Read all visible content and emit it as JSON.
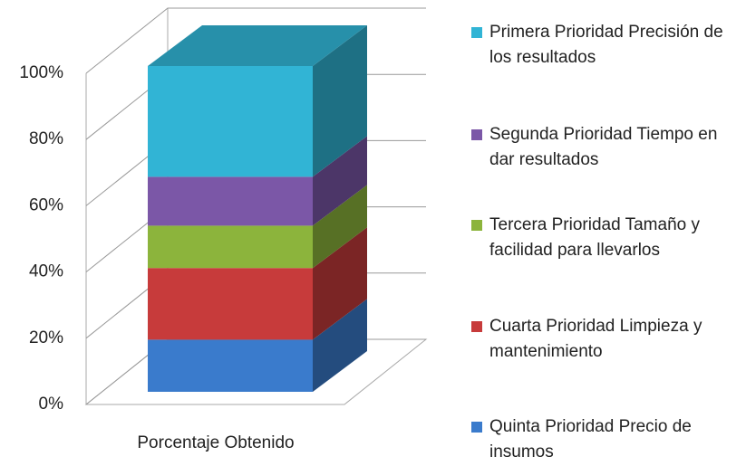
{
  "chart_data": {
    "type": "bar",
    "stacked": true,
    "three_d": true,
    "categories": [
      "Porcentaje Obtenido"
    ],
    "series": [
      {
        "name": "Quinta Prioridad Precio de insumos",
        "color": "#3a7bcc",
        "values": [
          16
        ]
      },
      {
        "name": "Cuarta Prioridad Limpieza y mantenimiento",
        "color": "#c73b3b",
        "values": [
          22
        ]
      },
      {
        "name": "Tercera Prioridad Tamaño y facilidad para llevarlos",
        "color": "#8cb43c",
        "values": [
          13
        ]
      },
      {
        "name": "Segunda Prioridad Tiempo en dar resultados",
        "color": "#7b57a7",
        "values": [
          15
        ]
      },
      {
        "name": "Primera Prioridad Precisión de los resultados",
        "color": "#31b4d5",
        "values": [
          34
        ]
      }
    ],
    "ylim": [
      0,
      100
    ],
    "yticks": [
      {
        "value": 0,
        "label": "0%"
      },
      {
        "value": 20,
        "label": "20%"
      },
      {
        "value": 40,
        "label": "40%"
      },
      {
        "value": 60,
        "label": "60%"
      },
      {
        "value": 80,
        "label": "80%"
      },
      {
        "value": 100,
        "label": "100%"
      }
    ],
    "grid": true,
    "legend": "right"
  }
}
